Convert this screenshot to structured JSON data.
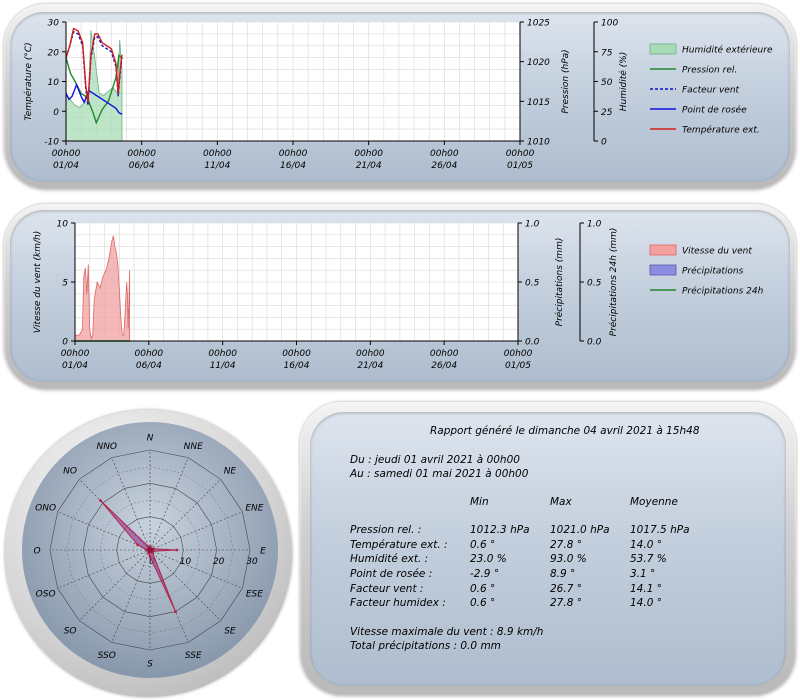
{
  "panel1": {
    "legend": [
      {
        "label": "Humidité extérieure",
        "kind": "box",
        "fill": "#a9dcb6",
        "stroke": "#6fae86"
      },
      {
        "label": "Pression rel.",
        "kind": "line",
        "color": "#1f8a2b",
        "dash": false
      },
      {
        "label": "Facteur vent",
        "kind": "line",
        "color": "#1010c8",
        "dash": true
      },
      {
        "label": "Point de rosée",
        "kind": "line",
        "color": "#1010e0",
        "dash": false
      },
      {
        "label": "Température ext.",
        "kind": "line",
        "color": "#d21c1c",
        "dash": false
      }
    ]
  },
  "panel2": {
    "legend": [
      {
        "label": "Vitesse du vent",
        "kind": "box",
        "fill": "#f2a0a0",
        "stroke": "#d66"
      },
      {
        "label": "Précipitations",
        "kind": "box",
        "fill": "#8c8ce0",
        "stroke": "#55a"
      },
      {
        "label": "Précipitations 24h",
        "kind": "line",
        "color": "#1f8a2b",
        "dash": false
      }
    ]
  },
  "chart_data": [
    {
      "type": "line",
      "xlabels": [
        [
          "00h00",
          "01/04"
        ],
        [
          "00h00",
          "06/04"
        ],
        [
          "00h00",
          "11/04"
        ],
        [
          "00h00",
          "16/04"
        ],
        [
          "00h00",
          "21/04"
        ],
        [
          "00h00",
          "26/04"
        ],
        [
          "00h00",
          "01/05"
        ]
      ],
      "x_range_days": [
        0,
        30
      ],
      "ylabel_left": "Température (°C)",
      "ylim_left": [
        -10,
        30
      ],
      "yticks_left": [
        -10,
        0,
        10,
        20,
        30
      ],
      "ylabel_right1": "Pression (hPa)",
      "ylim_right1": [
        1010,
        1025
      ],
      "yticks_right1": [
        1010,
        1015,
        1020,
        1025
      ],
      "ylabel_right2": "Humidité (%)",
      "ylim_right2": [
        0,
        100
      ],
      "yticks_right2": [
        0,
        25,
        50,
        75,
        100
      ],
      "grid": true,
      "legend_position": "right",
      "series": [
        {
          "name": "Humidité extérieure",
          "axis": "right2",
          "type": "area",
          "x": [
            0,
            0.25,
            0.6,
            0.9,
            1.2,
            1.5,
            1.65,
            1.9,
            2.2,
            2.5,
            2.8,
            3.1,
            3.4,
            3.55,
            3.7
          ],
          "y": [
            40,
            35,
            30,
            28,
            32,
            40,
            93,
            70,
            40,
            38,
            42,
            45,
            40,
            85,
            60
          ]
        },
        {
          "name": "Pression rel.",
          "axis": "right1",
          "type": "line",
          "x": [
            0,
            0.3,
            0.6,
            1.0,
            1.4,
            1.8,
            2.0,
            2.4,
            2.8,
            3.0,
            3.3,
            3.5,
            3.7
          ],
          "y": [
            1020.5,
            1018.5,
            1017.5,
            1016.0,
            1015.5,
            1013.5,
            1012.3,
            1014.0,
            1015.0,
            1016.2,
            1018.0,
            1020.8,
            1020.4
          ]
        },
        {
          "name": "Facteur vent",
          "axis": "left",
          "type": "line",
          "dashed": true,
          "x": [
            0,
            0.25,
            0.5,
            0.8,
            1.1,
            1.3,
            1.45,
            1.65,
            1.9,
            2.1,
            2.4,
            2.7,
            3.0,
            3.3,
            3.45,
            3.6,
            3.7
          ],
          "y": [
            18,
            22,
            26.7,
            26,
            22,
            8,
            2,
            18,
            25,
            25,
            22,
            21,
            20,
            15,
            5,
            14,
            18
          ]
        },
        {
          "name": "Point de rosée",
          "axis": "left",
          "type": "line",
          "x": [
            0,
            0.2,
            0.4,
            0.7,
            1.0,
            1.2,
            1.5,
            1.8,
            2.1,
            2.4,
            2.7,
            3.0,
            3.3,
            3.5,
            3.7
          ],
          "y": [
            6,
            4,
            5,
            8.9,
            5,
            3,
            7,
            6,
            5,
            4,
            3,
            2,
            1,
            -0.5,
            -1
          ]
        },
        {
          "name": "Température ext.",
          "axis": "left",
          "type": "line",
          "x": [
            0,
            0.25,
            0.5,
            0.8,
            1.1,
            1.3,
            1.45,
            1.65,
            1.9,
            2.1,
            2.4,
            2.7,
            3.0,
            3.3,
            3.45,
            3.6,
            3.7
          ],
          "y": [
            18,
            22,
            27.8,
            27,
            23,
            9,
            3,
            19,
            26,
            26,
            23,
            22,
            21,
            16,
            6,
            15,
            19
          ]
        }
      ]
    },
    {
      "type": "area",
      "xlabels": [
        [
          "00h00",
          "01/04"
        ],
        [
          "00h00",
          "06/04"
        ],
        [
          "00h00",
          "11/04"
        ],
        [
          "00h00",
          "16/04"
        ],
        [
          "00h00",
          "21/04"
        ],
        [
          "00h00",
          "26/04"
        ],
        [
          "00h00",
          "01/05"
        ]
      ],
      "x_range_days": [
        0,
        30
      ],
      "ylabel_left": "Vitesse du vent (km/h)",
      "ylim_left": [
        0,
        10
      ],
      "yticks_left": [
        0,
        5,
        10
      ],
      "ylabel_right1": "Précipitations (mm)",
      "ylim_right1": [
        0,
        1.0
      ],
      "yticks_right1": [
        "0.0",
        "0.5",
        "1.0"
      ],
      "ylabel_right2": "Précipitations 24h (mm)",
      "ylim_right2": [
        0,
        1.0
      ],
      "yticks_right2": [
        "0.0",
        "0.5",
        "1.0"
      ],
      "grid": true,
      "legend_position": "right",
      "series": [
        {
          "name": "Vitesse du vent",
          "axis": "left",
          "type": "area",
          "x": [
            0,
            0.3,
            0.5,
            0.6,
            0.7,
            0.8,
            0.9,
            1.0,
            1.1,
            1.2,
            1.3,
            1.5,
            1.7,
            1.9,
            2.1,
            2.3,
            2.5,
            2.6,
            2.7,
            2.8,
            2.9,
            3.0,
            3.1,
            3.2,
            3.3,
            3.4,
            3.5,
            3.55,
            3.6,
            3.7
          ],
          "y": [
            0.5,
            0.5,
            1.0,
            5.5,
            6.2,
            4.0,
            6.5,
            1.0,
            0.2,
            0.5,
            3.5,
            5.0,
            4.5,
            5.5,
            6.0,
            7.0,
            8.5,
            8.9,
            8.0,
            7.5,
            6.5,
            4.5,
            2.0,
            0.5,
            0.5,
            2.5,
            5.0,
            4.0,
            1.0,
            6.0
          ]
        },
        {
          "name": "Précipitations",
          "axis": "right1",
          "type": "area",
          "x": [
            0,
            3.7
          ],
          "y": [
            0,
            0
          ]
        },
        {
          "name": "Précipitations 24h",
          "axis": "right2",
          "type": "line",
          "x": [
            0,
            3.7
          ],
          "y": [
            0,
            0
          ]
        }
      ]
    },
    {
      "type": "radar",
      "directions": [
        "N",
        "NNE",
        "NE",
        "ENE",
        "E",
        "ESE",
        "SE",
        "SSE",
        "S",
        "SSO",
        "SO",
        "OSO",
        "O",
        "ONO",
        "NO",
        "NNO"
      ],
      "rlim": [
        0,
        30
      ],
      "rticks": [
        0,
        10,
        20,
        30
      ],
      "rtick_labels": [
        "0",
        "10",
        "20",
        "30"
      ],
      "r_axis_direction": "E",
      "series": [
        {
          "name": "Vitesse du vent",
          "values": [
            1,
            0.5,
            0.5,
            1,
            8,
            1,
            1,
            20,
            2,
            1,
            0.5,
            0.5,
            1,
            4,
            21,
            1
          ]
        }
      ]
    }
  ],
  "report": {
    "title": "Rapport généré le dimanche 04 avril 2021 à 15h48",
    "from": "Du : jeudi 01 avril 2021 à 00h00",
    "to": "Au : samedi 01 mai 2021 à 00h00",
    "columns": [
      "Min",
      "Max",
      "Moyenne"
    ],
    "rows": [
      {
        "label": "Pression rel. :",
        "min": "1012.3 hPa",
        "max": "1021.0 hPa",
        "avg": "1017.5 hPa"
      },
      {
        "label": "Température ext. :",
        "min": "0.6 °",
        "max": "27.8 °",
        "avg": "14.0 °"
      },
      {
        "label": "Humidité ext. :",
        "min": "23.0 %",
        "max": "93.0 %",
        "avg": "53.7 %"
      },
      {
        "label": "Point de rosée :",
        "min": "-2.9 °",
        "max": "8.9 °",
        "avg": "3.1 °"
      },
      {
        "label": "Facteur vent :",
        "min": "0.6 °",
        "max": "26.7 °",
        "avg": "14.1 °"
      },
      {
        "label": "Facteur humidex :",
        "min": "0.6 °",
        "max": "27.8 °",
        "avg": "14.0 °"
      }
    ],
    "max_wind": "Vitesse maximale du vent : 8.9 km/h",
    "total_rain": "Total précipitations : 0.0 mm"
  }
}
